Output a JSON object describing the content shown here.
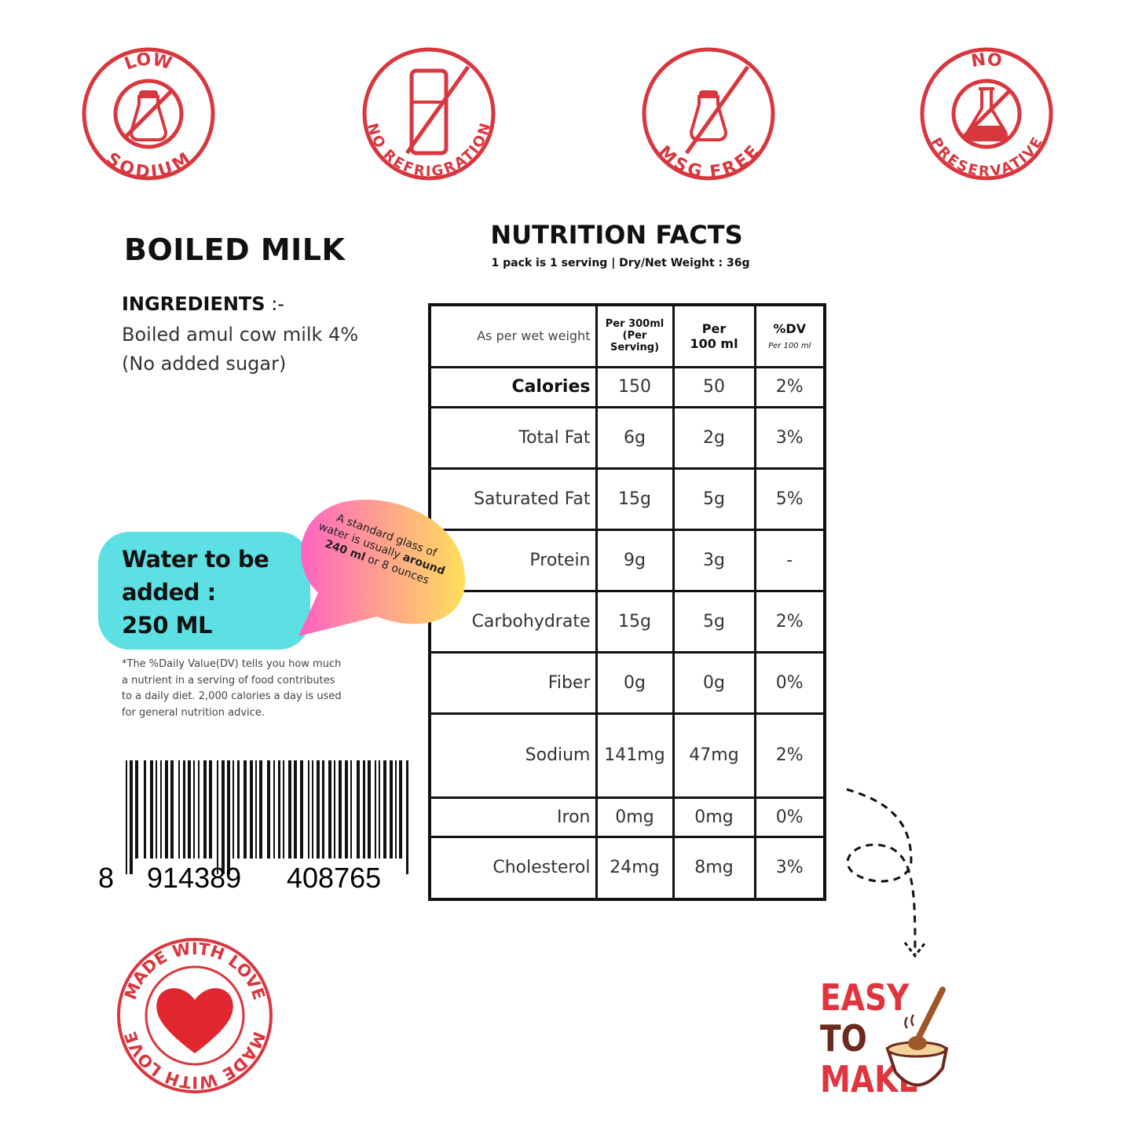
{
  "badges": [
    {
      "top": "LOW",
      "bottom": "SODIUM",
      "icon": "salt-shaker-crossed-icon"
    },
    {
      "top": "",
      "bottom": "NO REFRIGRATION",
      "icon": "fridge-crossed-icon"
    },
    {
      "top": "",
      "bottom": "MSG FREE",
      "icon": "salt-shaker-crossed-icon"
    },
    {
      "top": "NO",
      "bottom": "PRESERVATIVE",
      "icon": "flask-crossed-icon"
    }
  ],
  "accent": "#d9363e",
  "product": {
    "title": "BOILED MILK",
    "ingredients_label": "INGREDIENTS",
    "ingredients_suffix": " :-",
    "ingredients": "Boiled amul cow milk 4% (No added sugar)"
  },
  "nutrition": {
    "title": "NUTRITION FACTS",
    "subtitle": "1 pack is 1 serving | Dry/Net  Weight : 36g",
    "headers": [
      "As per wet weight",
      "Per 300ml",
      "(Per Serving)",
      "Per",
      "100 ml",
      "%DV",
      "Per 100 ml"
    ],
    "rows": [
      [
        "Calories",
        "150",
        "50",
        "2%"
      ],
      [
        "Total Fat",
        "6g",
        "2g",
        "3%"
      ],
      [
        "Saturated Fat",
        "15g",
        "5g",
        "5%"
      ],
      [
        "Protein",
        "9g",
        "3g",
        "-"
      ],
      [
        "Carbohydrate",
        "15g",
        "5g",
        "2%"
      ],
      [
        "Fiber",
        "0g",
        "0g",
        "0%"
      ],
      [
        "Sodium",
        "141mg",
        "47mg",
        "2%"
      ],
      [
        "Iron",
        "0mg",
        "0mg",
        "0%"
      ],
      [
        "Cholesterol",
        "24mg",
        "8mg",
        "3%"
      ]
    ]
  },
  "water": {
    "line1": "Water to be",
    "line2": "added :",
    "line3": "250 ML",
    "color": "#5ce0e3"
  },
  "bubble": {
    "t1": "A standard glass of water is usually ",
    "t2": "around",
    "t3": "240 ml",
    "t4": " or 8 ounces"
  },
  "note": "*The %Daily Value(DV) tells you how much a nutrient in a serving of food contributes to a daily diet. 2,000 calories a day is used for general nutrition advice.",
  "barcode": {
    "d1": "8",
    "d2": "914389",
    "d3": "408765"
  },
  "stamp": {
    "text": "MADE WITH LOVE",
    "icon": "heart-icon"
  },
  "easy": {
    "l1": "EASY",
    "l2": "TO",
    "l3": "MAKE",
    "icon": "bowl-spoon-icon"
  }
}
